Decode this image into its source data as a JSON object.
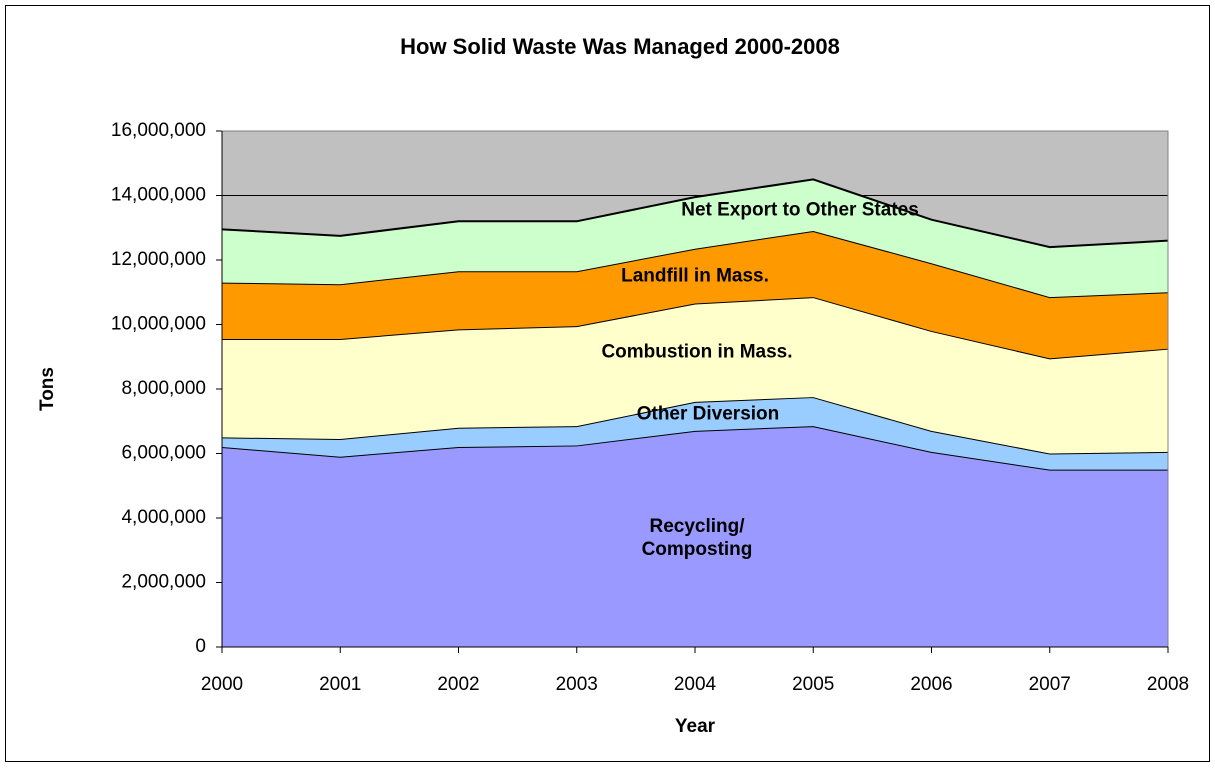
{
  "chart_data": {
    "type": "stacked_area",
    "title": "How Solid Waste Was Managed  2000-2008",
    "x_label": "Year",
    "y_label": "Tons",
    "categories": [
      "2000",
      "2001",
      "2002",
      "2003",
      "2004",
      "2005",
      "2006",
      "2007",
      "2008"
    ],
    "series": [
      {
        "name": "Recycling/ Composting",
        "color": "#9999ff",
        "values": [
          6200000,
          5900000,
          6200000,
          6250000,
          6700000,
          6850000,
          6050000,
          5500000,
          5500000
        ]
      },
      {
        "name": "Other Diversion",
        "color": "#99ccff",
        "values": [
          300000,
          550000,
          600000,
          600000,
          900000,
          900000,
          650000,
          500000,
          550000
        ]
      },
      {
        "name": "Combustion in Mass.",
        "color": "#ffffcc",
        "values": [
          3050000,
          3100000,
          3050000,
          3100000,
          3050000,
          3100000,
          3100000,
          2950000,
          3200000
        ]
      },
      {
        "name": "Landfill in Mass.",
        "color": "#ff9900",
        "values": [
          1750000,
          1700000,
          1800000,
          1700000,
          1700000,
          2050000,
          2100000,
          1900000,
          1750000
        ]
      },
      {
        "name": "Net Export to Other States",
        "color": "#ccffcc",
        "values": [
          1650000,
          1500000,
          1550000,
          1550000,
          1600000,
          1600000,
          1350000,
          1550000,
          1600000
        ]
      }
    ],
    "ylim": [
      0,
      16000000
    ],
    "yticks": [
      0,
      {
        "value": 2000000,
        "label": "2,000,000"
      },
      {
        "value": 4000000,
        "label": "4,000,000"
      },
      {
        "value": 6000000,
        "label": "6,000,000"
      },
      {
        "value": 8000000,
        "label": "8,000,000"
      },
      {
        "value": 10000000,
        "label": "10,000,000"
      },
      {
        "value": 12000000,
        "label": "12,000,000"
      },
      {
        "value": 14000000,
        "label": "14,000,000"
      },
      {
        "value": 16000000,
        "label": "16,000,000"
      }
    ],
    "grid": true
  }
}
